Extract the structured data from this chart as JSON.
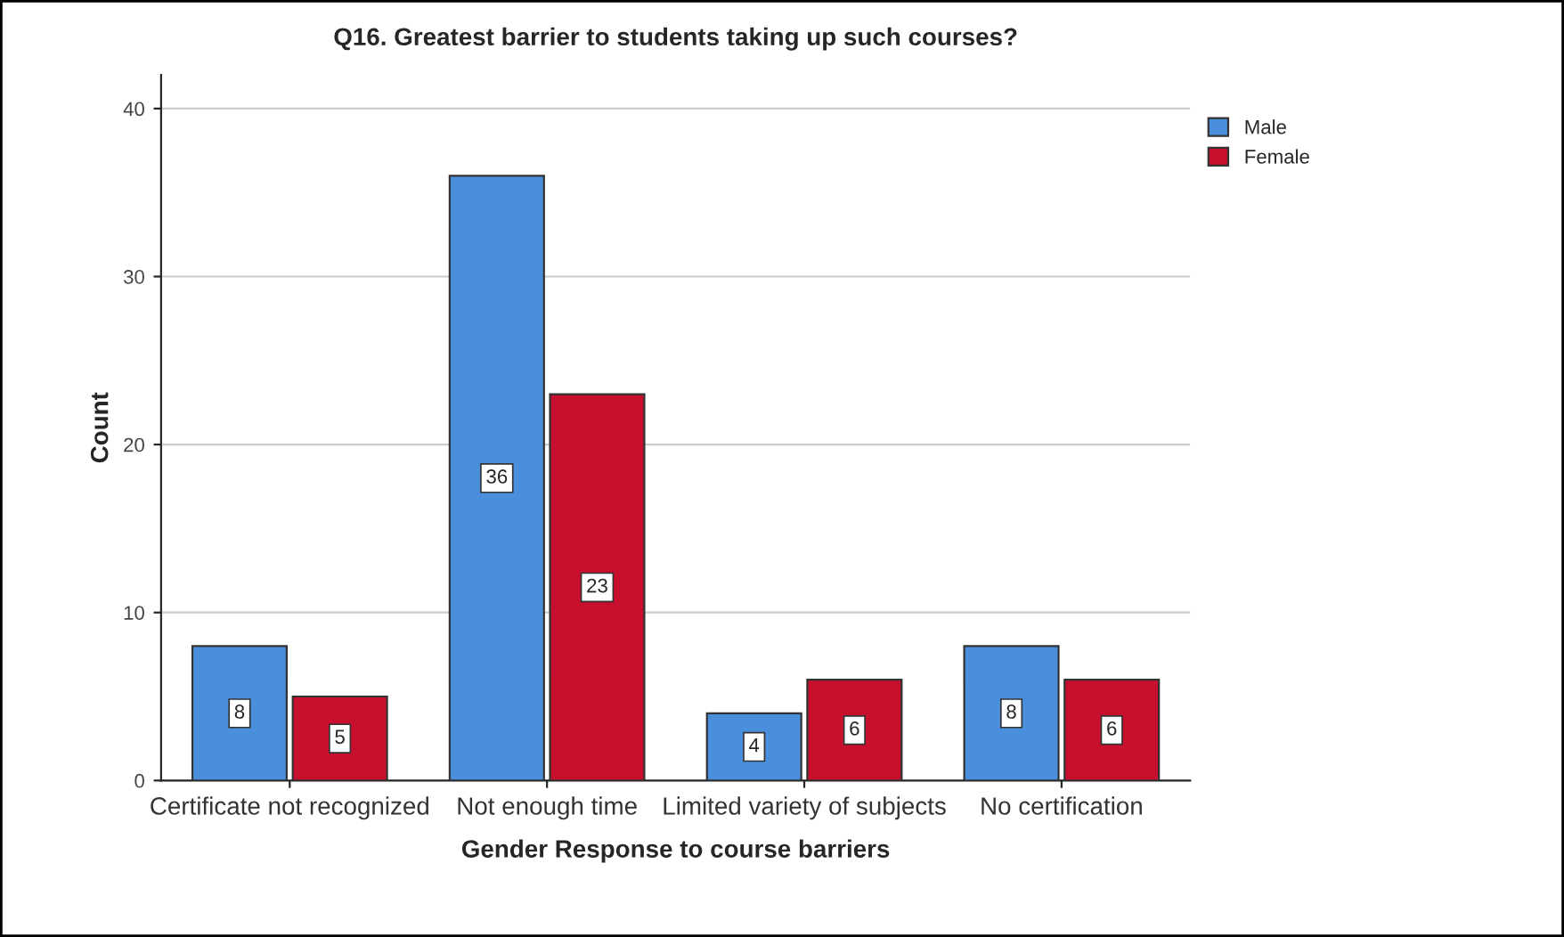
{
  "chart_data": {
    "type": "bar",
    "title": "Q16. Greatest barrier to students taking up such courses?",
    "xlabel": "Gender Response to course barriers",
    "ylabel": "Count",
    "categories": [
      "Certificate not recognized",
      "Not enough time",
      "Limited variety of subjects",
      "No certification"
    ],
    "series": [
      {
        "name": "Male",
        "color": "#4a8fdb",
        "values": [
          8,
          36,
          4,
          8
        ]
      },
      {
        "name": "Female",
        "color": "#c8102e",
        "values": [
          5,
          23,
          6,
          6
        ]
      }
    ],
    "ylim": [
      0,
      42
    ],
    "yticks": [
      0,
      10,
      20,
      30,
      40
    ],
    "grid": "y",
    "legend": "top right",
    "data_labels": true
  }
}
